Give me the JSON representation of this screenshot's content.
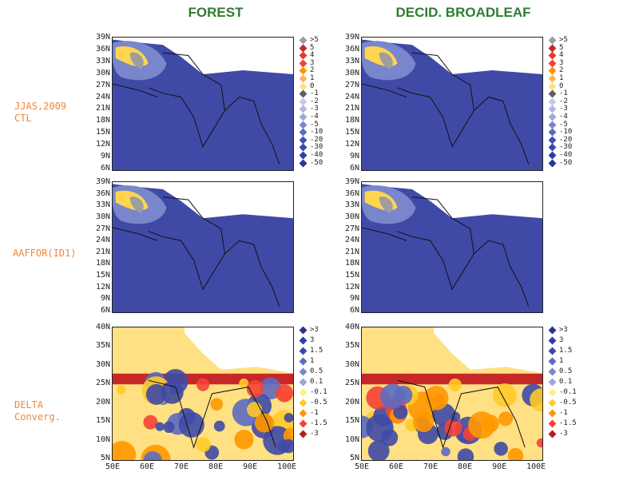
{
  "columns": [
    {
      "title": "FOREST"
    },
    {
      "title": "DECID. BROADLEAF"
    }
  ],
  "rows": [
    {
      "label": "JJAS,2009\nCTL"
    },
    {
      "label": "AAFFOR(ID1)"
    },
    {
      "label": "DELTA\nConverg."
    }
  ],
  "lat_ticks_top": [
    "39N",
    "36N",
    "33N",
    "30N",
    "27N",
    "24N",
    "21N",
    "18N",
    "15N",
    "12N",
    "9N",
    "6N"
  ],
  "lat_ticks_bottom": [
    "40N",
    "35N",
    "30N",
    "25N",
    "20N",
    "15N",
    "10N",
    "5N"
  ],
  "lon_ticks": [
    "50E",
    "60E",
    "70E",
    "80E",
    "90E",
    "100E"
  ],
  "legend_top": {
    "labels": [
      ">5",
      "5",
      "4",
      "3",
      "2",
      "1",
      "0",
      "-1",
      "-2",
      "-3",
      "-4",
      "-5",
      "-10",
      "-20",
      "-30",
      "-40",
      "-50"
    ],
    "colors": [
      "#9e9e9e",
      "#c62828",
      "#e53935",
      "#f44336",
      "#ff9800",
      "#ffb74d",
      "#ffe082",
      "#616161",
      "#c5cae9",
      "#b3b7e0",
      "#9fa8da",
      "#7986cb",
      "#5c6bc0",
      "#3f51b5",
      "#3949ab",
      "#303f9f",
      "#283593"
    ]
  },
  "legend_bottom": {
    "labels": [
      ">3",
      "3",
      "1.5",
      "1",
      "0.5",
      "0.1",
      "-0.1",
      "-0.5",
      "-1",
      "-1.5",
      "-3"
    ],
    "colors": [
      "#283593",
      "#303f9f",
      "#3949ab",
      "#5c6bc0",
      "#7986cb",
      "#9fa8da",
      "#fff176",
      "#ffca28",
      "#ff9800",
      "#f44336",
      "#b71c1c"
    ]
  }
}
